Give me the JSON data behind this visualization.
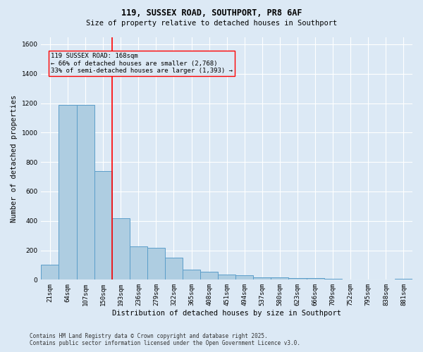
{
  "title_line1": "119, SUSSEX ROAD, SOUTHPORT, PR8 6AF",
  "title_line2": "Size of property relative to detached houses in Southport",
  "xlabel": "Distribution of detached houses by size in Southport",
  "ylabel": "Number of detached properties",
  "footer_line1": "Contains HM Land Registry data © Crown copyright and database right 2025.",
  "footer_line2": "Contains public sector information licensed under the Open Government Licence v3.0.",
  "annotation_line1": "119 SUSSEX ROAD: 168sqm",
  "annotation_line2": "← 66% of detached houses are smaller (2,768)",
  "annotation_line3": "33% of semi-detached houses are larger (1,393) →",
  "bar_color": "#aecde1",
  "bar_edge_color": "#5b9ec9",
  "background_color": "#dce9f5",
  "grid_color": "#ffffff",
  "categories": [
    "21sqm",
    "64sqm",
    "107sqm",
    "150sqm",
    "193sqm",
    "236sqm",
    "279sqm",
    "322sqm",
    "365sqm",
    "408sqm",
    "451sqm",
    "494sqm",
    "537sqm",
    "580sqm",
    "623sqm",
    "666sqm",
    "709sqm",
    "752sqm",
    "795sqm",
    "838sqm",
    "881sqm"
  ],
  "values": [
    100,
    1190,
    1190,
    740,
    420,
    225,
    215,
    150,
    70,
    55,
    35,
    30,
    18,
    15,
    12,
    10,
    7,
    2,
    2,
    2,
    8
  ],
  "ylim": [
    0,
    1650
  ],
  "yticks": [
    0,
    200,
    400,
    600,
    800,
    1000,
    1200,
    1400,
    1600
  ],
  "vline_x": 3.5,
  "title_fontsize": 8.5,
  "subtitle_fontsize": 7.5,
  "ylabel_fontsize": 7.5,
  "xlabel_fontsize": 7.5,
  "tick_fontsize": 6.5,
  "annotation_fontsize": 6.5,
  "footer_fontsize": 5.5
}
